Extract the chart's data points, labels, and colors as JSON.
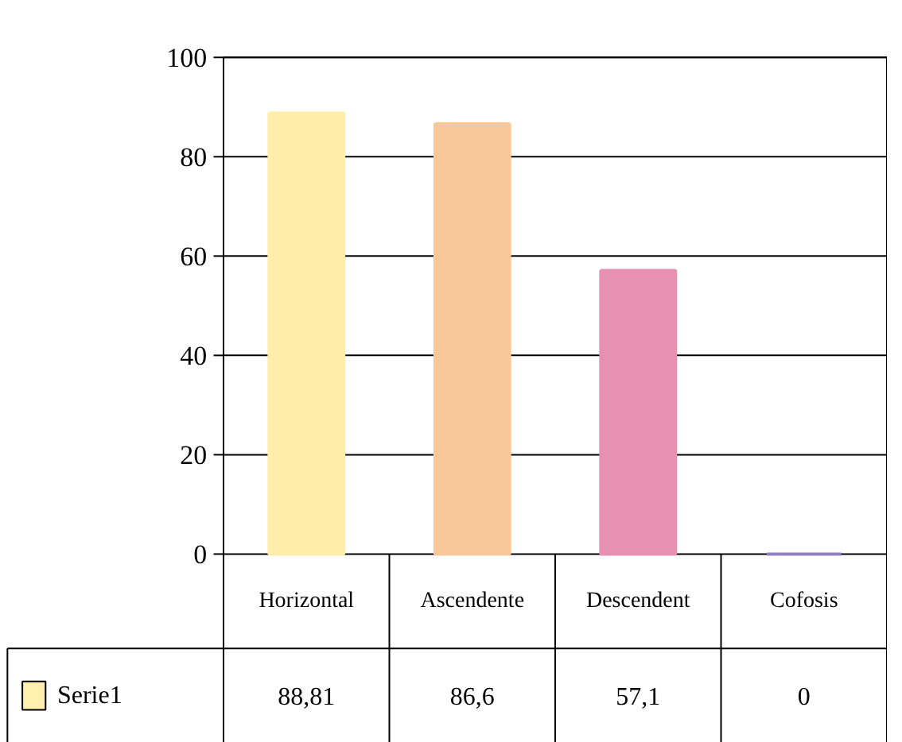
{
  "chart_data": {
    "type": "bar",
    "categories": [
      "Horizontal",
      "Ascendente",
      "Descendent",
      "Cofosis"
    ],
    "series": [
      {
        "name": "Serie1",
        "color": "#fff0b0",
        "colors": [
          "#ffeeaa",
          "#f8c89a",
          "#e890b0",
          "#9080c0"
        ],
        "values": [
          88.81,
          86.6,
          57.1,
          0
        ],
        "value_labels": [
          "88,81",
          "86,6",
          "57,1",
          "0"
        ]
      }
    ],
    "ylim": [
      0,
      100
    ],
    "yticks": [
      0,
      20,
      40,
      60,
      80,
      100
    ],
    "grid": "y",
    "legend": "bottom"
  }
}
